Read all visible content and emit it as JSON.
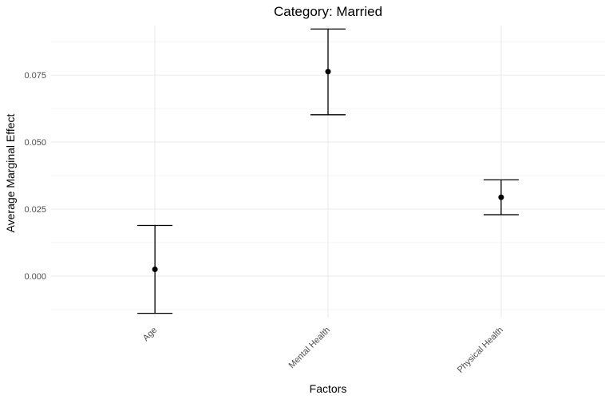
{
  "chart_data": {
    "type": "errorbar",
    "title": "Category: Married",
    "xlabel": "Factors",
    "ylabel": "Average Marginal Effect",
    "categories": [
      "Age",
      "Mental Health",
      "Physical Health"
    ],
    "estimates": [
      0.0025,
      0.0763,
      0.0294
    ],
    "lower": [
      -0.0139,
      0.0602,
      0.0229
    ],
    "upper": [
      0.0189,
      0.0922,
      0.0359
    ],
    "yticks": [
      0.0,
      0.025,
      0.05,
      0.075
    ],
    "ytick_labels": [
      "0.000",
      "0.025",
      "0.050",
      "0.075"
    ],
    "ylim": [
      -0.0155,
      0.0935
    ],
    "grid": true,
    "legend": "none",
    "colors": {
      "points": "#000000",
      "grid": "#ebebeb",
      "tick_text": "#4d4d4d"
    }
  }
}
